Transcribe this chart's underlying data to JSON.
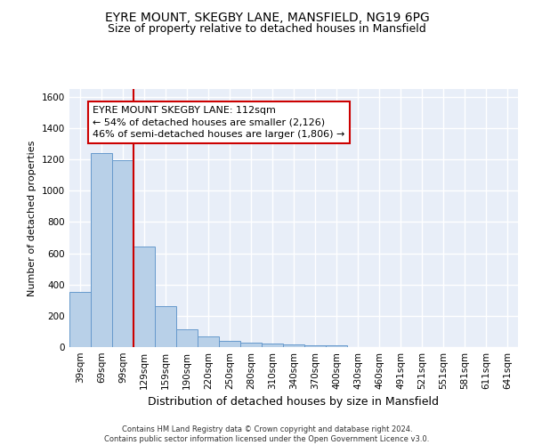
{
  "title1": "EYRE MOUNT, SKEGBY LANE, MANSFIELD, NG19 6PG",
  "title2": "Size of property relative to detached houses in Mansfield",
  "xlabel": "Distribution of detached houses by size in Mansfield",
  "ylabel": "Number of detached properties",
  "categories": [
    "39sqm",
    "69sqm",
    "99sqm",
    "129sqm",
    "159sqm",
    "190sqm",
    "220sqm",
    "250sqm",
    "280sqm",
    "310sqm",
    "340sqm",
    "370sqm",
    "400sqm",
    "430sqm",
    "460sqm",
    "491sqm",
    "521sqm",
    "551sqm",
    "581sqm",
    "611sqm",
    "641sqm"
  ],
  "values": [
    350,
    1240,
    1195,
    645,
    260,
    115,
    70,
    40,
    30,
    20,
    15,
    12,
    10,
    0,
    0,
    0,
    0,
    0,
    0,
    0,
    0
  ],
  "bar_color": "#b8d0e8",
  "bar_edge_color": "#6699cc",
  "highlight_color": "#cc0000",
  "annotation_line1": "EYRE MOUNT SKEGBY LANE: 112sqm",
  "annotation_line2": "← 54% of detached houses are smaller (2,126)",
  "annotation_line3": "46% of semi-detached houses are larger (1,806) →",
  "annotation_box_color": "#cc0000",
  "background_color": "#e8eef8",
  "grid_color": "#ffffff",
  "ylim": [
    0,
    1650
  ],
  "yticks": [
    0,
    200,
    400,
    600,
    800,
    1000,
    1200,
    1400,
    1600
  ],
  "footer_line1": "Contains HM Land Registry data © Crown copyright and database right 2024.",
  "footer_line2": "Contains public sector information licensed under the Open Government Licence v3.0.",
  "title1_fontsize": 10,
  "title2_fontsize": 9,
  "xlabel_fontsize": 9,
  "ylabel_fontsize": 8,
  "tick_fontsize": 7.5,
  "footer_fontsize": 6,
  "annot_fontsize": 8
}
